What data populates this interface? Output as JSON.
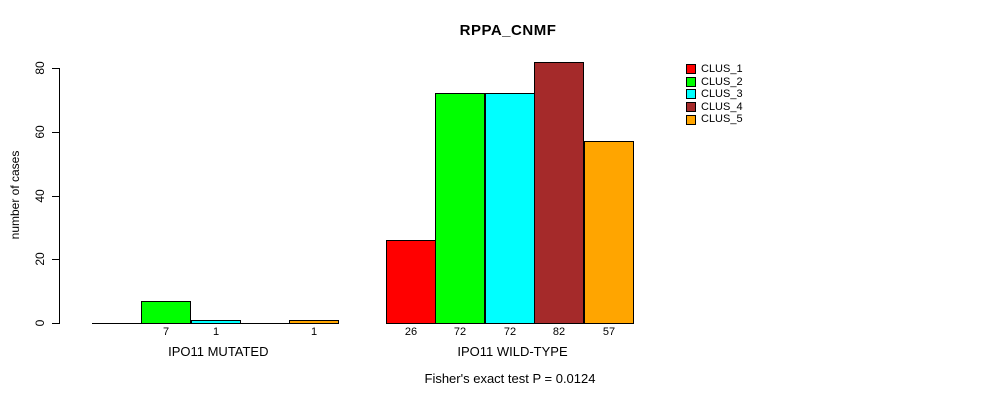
{
  "chart_data": {
    "type": "bar",
    "title": "RPPA_CNMF",
    "ylabel": "number of cases",
    "xlabel": "",
    "ylim": [
      0,
      80
    ],
    "yticks": [
      0,
      20,
      40,
      60,
      80
    ],
    "categories": [
      "IPO11 MUTATED",
      "IPO11 WILD-TYPE"
    ],
    "series": [
      {
        "name": "CLUS_1",
        "color": "#FF0000",
        "values": [
          0,
          26
        ]
      },
      {
        "name": "CLUS_2",
        "color": "#00FF00",
        "values": [
          7,
          72
        ]
      },
      {
        "name": "CLUS_3",
        "color": "#00FFFF",
        "values": [
          1,
          72
        ]
      },
      {
        "name": "CLUS_4",
        "color": "#A52A2A",
        "values": [
          0,
          82
        ]
      },
      {
        "name": "CLUS_5",
        "color": "#FFA500",
        "values": [
          1,
          57
        ]
      }
    ],
    "bar_value_labels": {
      "shown": true,
      "note": "labels shown under each bar only when value > 0"
    },
    "annotation": "Fisher's exact test P = 0.0124",
    "legend_position": "right",
    "grid": false,
    "background_color": "#FFFFFF",
    "axis_color": "#000000"
  }
}
